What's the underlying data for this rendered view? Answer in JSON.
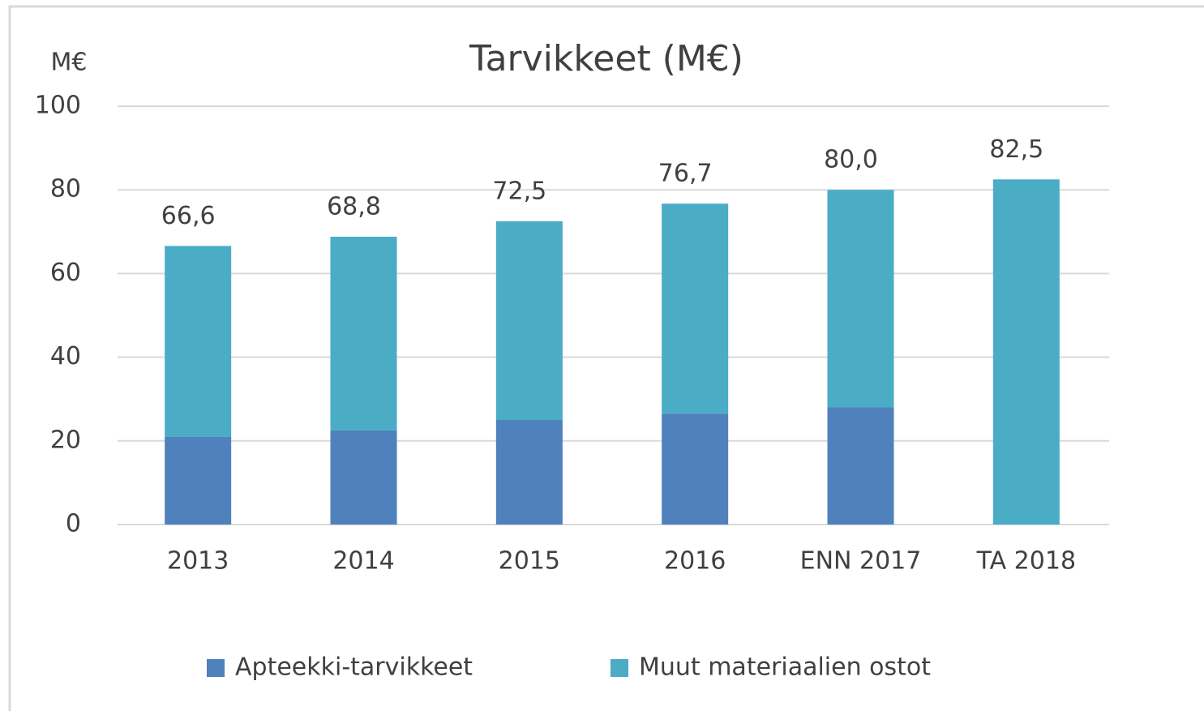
{
  "chart_data": {
    "type": "stacked_bar",
    "title": "Tarvikkeet (M€)",
    "y_label": "M€",
    "categories": [
      "2013",
      "2014",
      "2015",
      "2016",
      "ENN 2017",
      "TA 2018"
    ],
    "series": [
      {
        "name": "Apteekki-tarvikkeet",
        "color": "#4f81bd",
        "values": [
          21,
          22.5,
          25,
          26.5,
          28,
          null
        ]
      },
      {
        "name": "Muut materiaalien ostot",
        "color": "#4bacc6",
        "values": [
          45.6,
          46.3,
          47.5,
          50.2,
          52.0,
          82.5
        ]
      }
    ],
    "totals": [
      66.6,
      68.8,
      72.5,
      76.7,
      80.0,
      82.5
    ],
    "total_labels": [
      "66,6",
      "68,8",
      "72,5",
      "76,7",
      "80,0",
      "82,5"
    ],
    "ylim": [
      0,
      100
    ],
    "yticks": [
      0,
      20,
      40,
      60,
      80,
      100
    ],
    "grid": true,
    "legend": "bottom"
  }
}
